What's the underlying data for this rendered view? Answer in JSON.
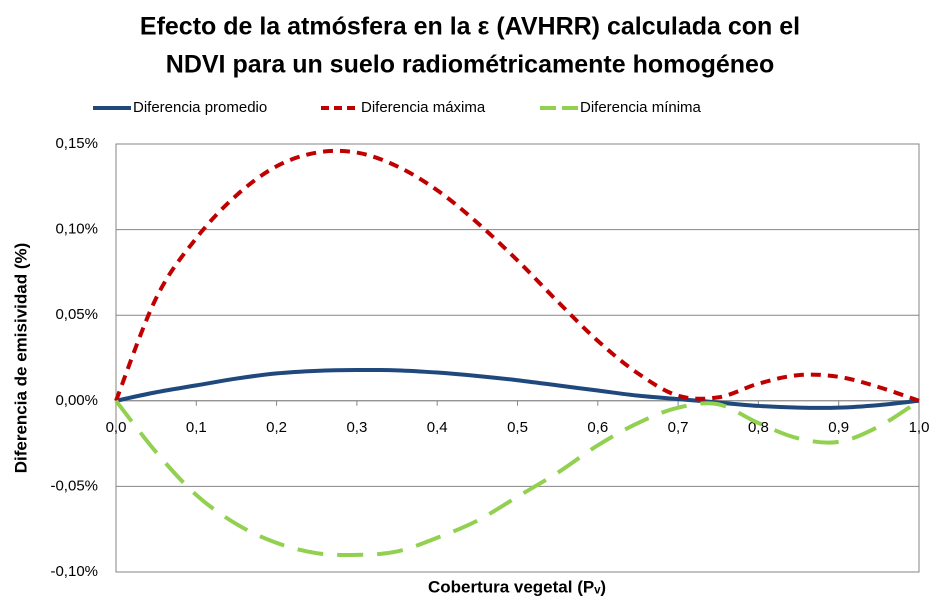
{
  "chart_data": {
    "type": "line",
    "title": [
      "Efecto de la atmósfera en la ε (AVHRR) calculada con el",
      "NDVI para un suelo radiométricamente homogéneo"
    ],
    "xlabel": "Cobertura vegetal (Pᵥ)",
    "ylabel": "Diferencia de emisividad (%)",
    "x": [
      0,
      0.05,
      0.1,
      0.15,
      0.2,
      0.25,
      0.3,
      0.35,
      0.4,
      0.45,
      0.5,
      0.55,
      0.6,
      0.65,
      0.7,
      0.75,
      0.8,
      0.85,
      0.9,
      0.95,
      1.0
    ],
    "series": [
      {
        "name": "Diferencia promedio",
        "color": "#1f497d",
        "dash": "solid",
        "values": [
          0,
          0.005,
          0.009,
          0.013,
          0.016,
          0.0175,
          0.018,
          0.0178,
          0.0165,
          0.0145,
          0.012,
          0.009,
          0.006,
          0.003,
          0.001,
          -0.001,
          -0.003,
          -0.004,
          -0.004,
          -0.0025,
          0
        ]
      },
      {
        "name": "Diferencia máxima",
        "color": "#c00000",
        "dash": "short",
        "values": [
          0,
          0.06,
          0.095,
          0.12,
          0.137,
          0.145,
          0.145,
          0.137,
          0.123,
          0.104,
          0.082,
          0.058,
          0.035,
          0.016,
          0.003,
          0.002,
          0.01,
          0.015,
          0.014,
          0.008,
          0
        ]
      },
      {
        "name": "Diferencia mínima",
        "color": "#92d050",
        "dash": "long",
        "values": [
          0,
          -0.03,
          -0.055,
          -0.072,
          -0.083,
          -0.089,
          -0.09,
          -0.088,
          -0.08,
          -0.07,
          -0.056,
          -0.042,
          -0.026,
          -0.013,
          -0.004,
          -0.002,
          -0.013,
          -0.022,
          -0.024,
          -0.015,
          0
        ]
      }
    ],
    "xlim": [
      0,
      1.0
    ],
    "xticks": [
      {
        "value": 0,
        "label": "0,0"
      },
      {
        "value": 0.1,
        "label": "0,1"
      },
      {
        "value": 0.2,
        "label": "0,2"
      },
      {
        "value": 0.3,
        "label": "0,3"
      },
      {
        "value": 0.4,
        "label": "0,4"
      },
      {
        "value": 0.5,
        "label": "0,5"
      },
      {
        "value": 0.6,
        "label": "0,6"
      },
      {
        "value": 0.7,
        "label": "0,7"
      },
      {
        "value": 0.8,
        "label": "0,8"
      },
      {
        "value": 0.9,
        "label": "0,9"
      },
      {
        "value": 1.0,
        "label": "1,0"
      }
    ],
    "ylim": [
      -0.1,
      0.15
    ],
    "yticks": [
      {
        "value": -0.1,
        "label": "-0,10%"
      },
      {
        "value": -0.05,
        "label": "-0,05%"
      },
      {
        "value": 0,
        "label": "0,00%"
      },
      {
        "value": 0.05,
        "label": "0,05%"
      },
      {
        "value": 0.1,
        "label": "0,10%"
      },
      {
        "value": 0.15,
        "label": "0,15%"
      }
    ],
    "grid": true,
    "legend": "top"
  }
}
